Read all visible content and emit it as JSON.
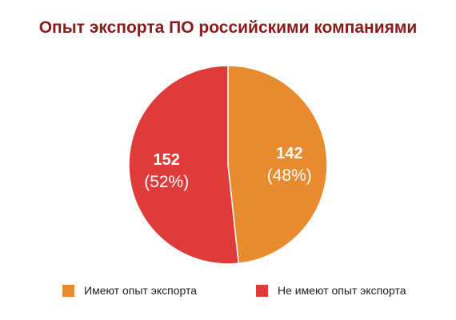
{
  "colors": {
    "title": "#8b1a1a",
    "slice_yes": "#e88a2e",
    "slice_no": "#de3b3a",
    "label_text": "#ffffff"
  },
  "chart_data": {
    "type": "pie",
    "title": "Опыт экспорта ПО российскими компаниями",
    "slices": [
      {
        "name": "Имеют опыт экспорта",
        "value": 142,
        "value_label": "142",
        "percent_label": "(48%)",
        "color": "#e88a2e"
      },
      {
        "name": "Не имеют опыт экспорта",
        "value": 152,
        "value_label": "152",
        "percent_label": "(52%)",
        "color": "#de3b3a"
      }
    ],
    "legend_position": "bottom"
  }
}
